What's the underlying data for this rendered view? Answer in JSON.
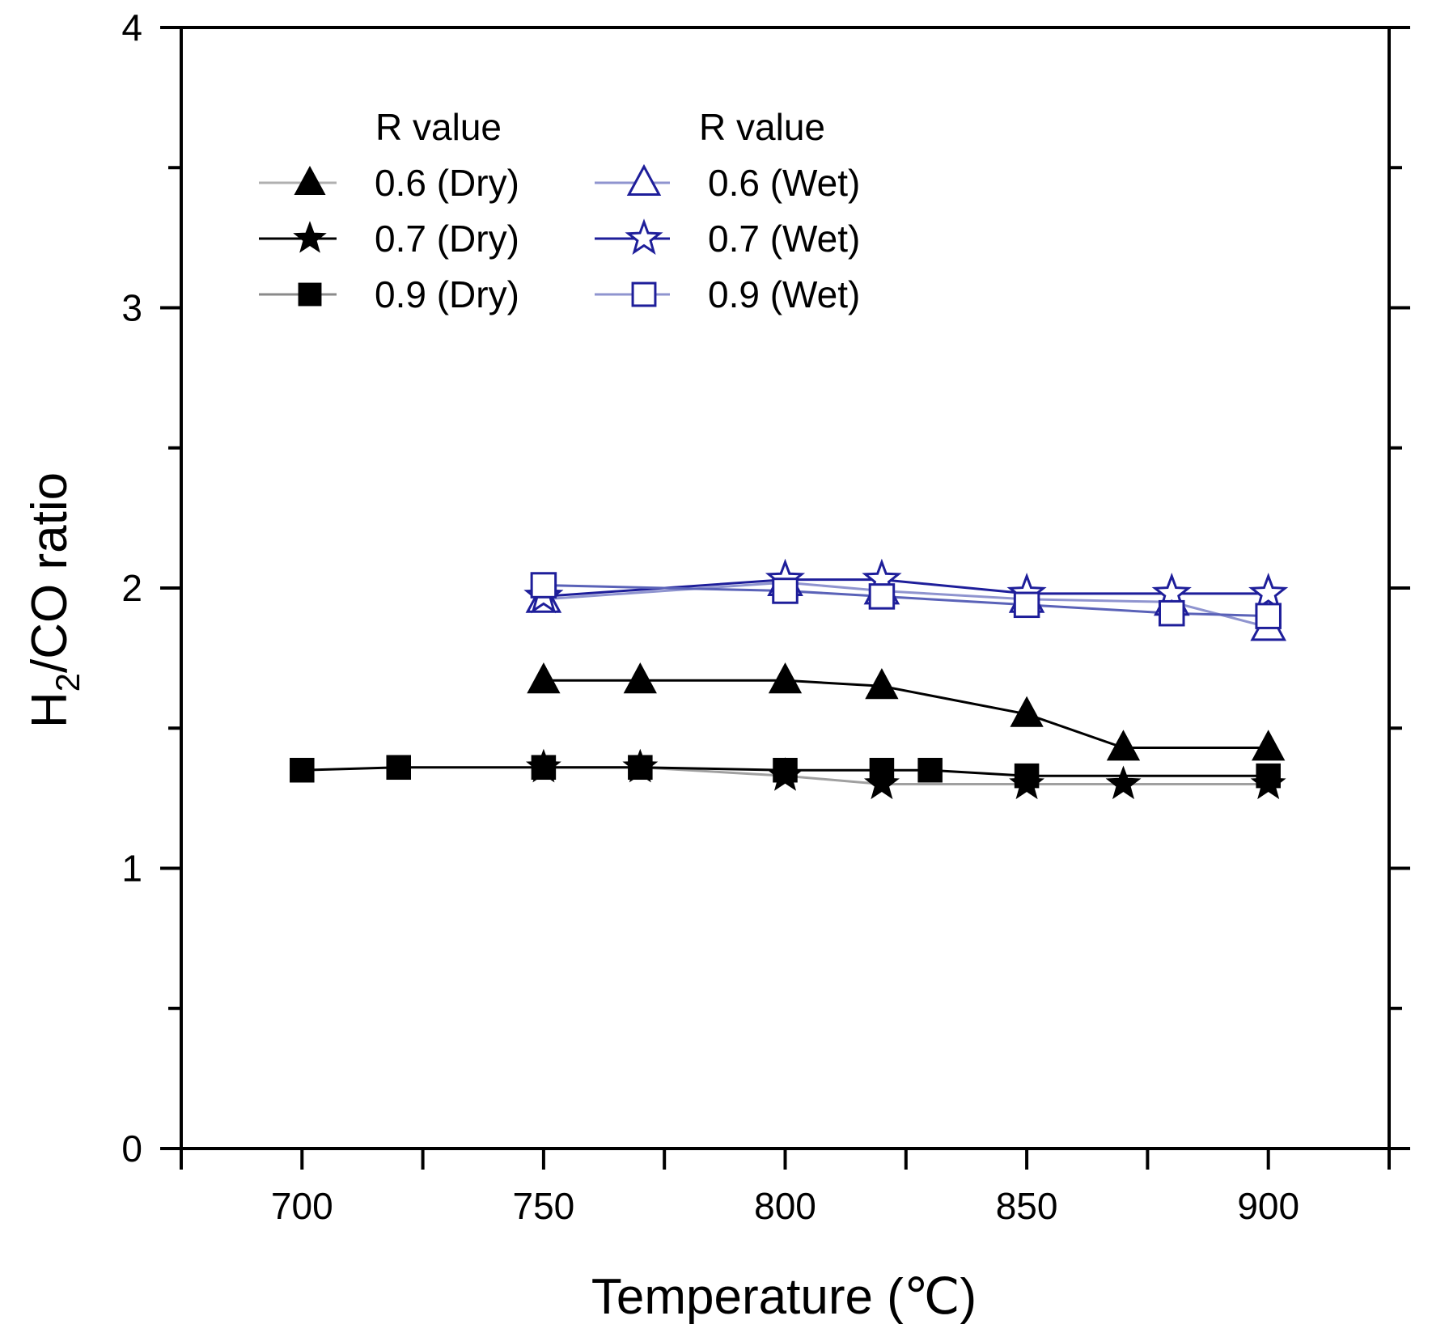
{
  "chart_data": {
    "type": "line",
    "xlabel": "Temperature (℃)",
    "ylabel_main": "H",
    "ylabel_sub": "2",
    "ylabel_rest": "/CO ratio",
    "xlim": [
      675,
      925
    ],
    "ylim": [
      0,
      4
    ],
    "xticks": [
      700,
      750,
      800,
      850,
      900
    ],
    "yticks": [
      0,
      1,
      2,
      3,
      4
    ],
    "x_minor_ticks": [
      675,
      725,
      775,
      825,
      875,
      925
    ],
    "y_minor_ticks": [
      0.5,
      1.5,
      2.5,
      3.5
    ],
    "legend": {
      "placement": "top-left",
      "header_left": "R value",
      "header_right": "R value"
    },
    "series": [
      {
        "name": "0.6 (Dry)",
        "marker": "triangle",
        "filled": true,
        "color": "#000000",
        "line_color": "#000000",
        "legend_line_color": "#b0b0b0",
        "x": [
          750,
          770,
          800,
          820,
          850,
          870,
          900
        ],
        "y": [
          1.67,
          1.67,
          1.67,
          1.65,
          1.55,
          1.43,
          1.43
        ]
      },
      {
        "name": "0.7 (Dry)",
        "marker": "star",
        "filled": true,
        "color": "#000000",
        "line_color": "#a0a0a0",
        "legend_line_color": "#000000",
        "x": [
          750,
          770,
          800,
          820,
          850,
          870,
          900
        ],
        "y": [
          1.36,
          1.36,
          1.33,
          1.3,
          1.3,
          1.3,
          1.3
        ]
      },
      {
        "name": "0.9 (Dry)",
        "marker": "square",
        "filled": true,
        "color": "#000000",
        "line_color": "#000000",
        "legend_line_color": "#8a8a8a",
        "x": [
          700,
          720,
          750,
          770,
          800,
          820,
          830,
          850,
          900
        ],
        "y": [
          1.35,
          1.36,
          1.36,
          1.36,
          1.35,
          1.35,
          1.35,
          1.33,
          1.33
        ]
      },
      {
        "name": "0.6 (Wet)",
        "marker": "triangle",
        "filled": false,
        "color": "#1e1e9a",
        "line_color": "#8f94cf",
        "legend_line_color": "#8f94cf",
        "x": [
          750,
          800,
          820,
          850,
          880,
          900
        ],
        "y": [
          1.96,
          2.02,
          1.99,
          1.96,
          1.95,
          1.86
        ]
      },
      {
        "name": "0.7 (Wet)",
        "marker": "star",
        "filled": false,
        "color": "#1e1e9a",
        "line_color": "#1e1e9a",
        "legend_line_color": "#1e1e9a",
        "x": [
          750,
          800,
          820,
          850,
          880,
          900
        ],
        "y": [
          1.97,
          2.03,
          2.03,
          1.98,
          1.98,
          1.98
        ]
      },
      {
        "name": "0.9 (Wet)",
        "marker": "square",
        "filled": false,
        "color": "#1e1e9a",
        "line_color": "#5a62b8",
        "legend_line_color": "#8f94cf",
        "x": [
          750,
          800,
          820,
          850,
          880,
          900
        ],
        "y": [
          2.01,
          1.99,
          1.97,
          1.94,
          1.91,
          1.9
        ]
      }
    ]
  }
}
